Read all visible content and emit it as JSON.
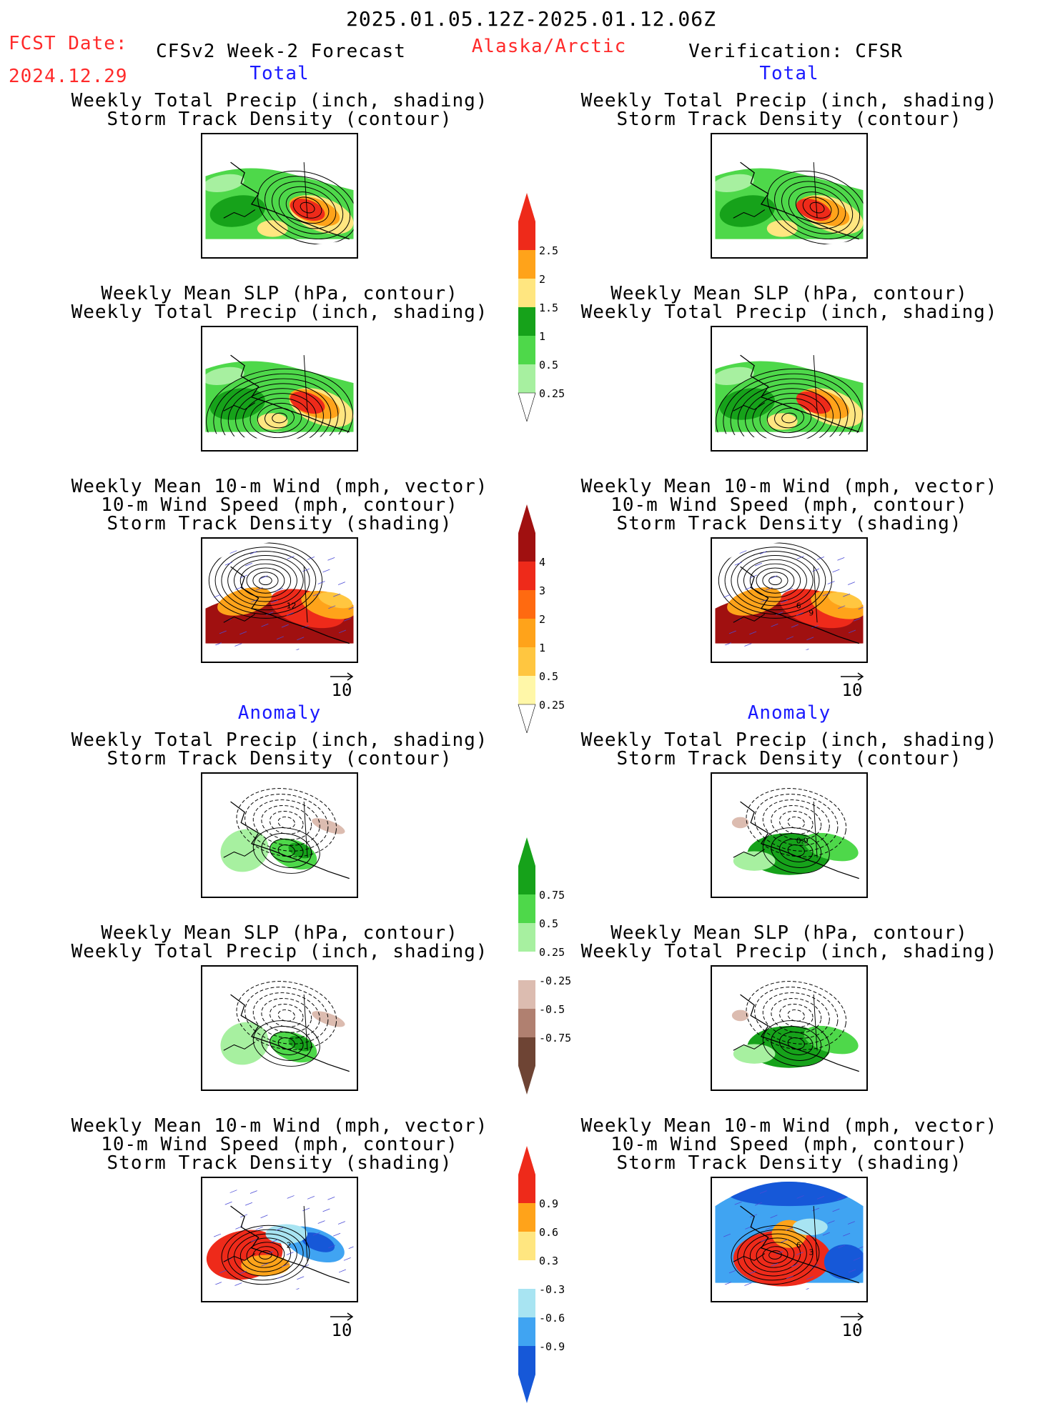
{
  "header": {
    "date_range": "2025.01.05.12Z-2025.01.12.06Z",
    "fcst_label": "FCST Date:",
    "fcst_date": "2024.12.29",
    "model_title": "CFSv2 Week-2 Forecast",
    "region": "Alaska/Arctic",
    "verification": "Verification: CFSR"
  },
  "sections": {
    "total": "Total",
    "anomaly": "Anomaly"
  },
  "titles": {
    "precip_storm": [
      "Weekly Total Precip (inch, shading)",
      "Storm Track Density (contour)"
    ],
    "slp_precip": [
      "Weekly Mean SLP (hPa, contour)",
      "Weekly Total Precip (inch, shading)"
    ],
    "wind_storm": [
      "Weekly Mean 10-m Wind (mph, vector)",
      "10-m Wind Speed (mph, contour)",
      "Storm Track Density (shading)"
    ]
  },
  "vector_ref": "10",
  "colors": {
    "green1": "#a7f0a0",
    "green2": "#4ed84a",
    "green3": "#16a21a",
    "yellow": "#ffe680",
    "orange": "#ffa31a",
    "red": "#ee2a1a",
    "darkred": "#a01010",
    "brown1": "#dcbcb0",
    "brown2": "#b08070",
    "brown3": "#6e4434",
    "blue1": "#a8e4f2",
    "blue2": "#40a4f2",
    "blue3": "#1658d8",
    "pale_yellow": "#fff7a8",
    "light_orange": "#ffc640"
  },
  "chart_data": {
    "type": "heatmap",
    "panels": [
      {
        "column": "forecast",
        "section": "total",
        "row": 1,
        "field": "precip_storm",
        "annotations": []
      },
      {
        "column": "forecast",
        "section": "total",
        "row": 2,
        "field": "slp_precip",
        "annotations": []
      },
      {
        "column": "forecast",
        "section": "total",
        "row": 3,
        "field": "wind_storm",
        "annotations": [
          "12"
        ]
      },
      {
        "column": "verification",
        "section": "total",
        "row": 1,
        "field": "precip_storm",
        "annotations": []
      },
      {
        "column": "verification",
        "section": "total",
        "row": 2,
        "field": "slp_precip",
        "annotations": []
      },
      {
        "column": "verification",
        "section": "total",
        "row": 3,
        "field": "wind_storm",
        "annotations": [
          "6",
          "9"
        ]
      },
      {
        "column": "forecast",
        "section": "anomaly",
        "row": 1,
        "field": "precip_storm",
        "annotations": []
      },
      {
        "column": "forecast",
        "section": "anomaly",
        "row": 2,
        "field": "slp_precip",
        "annotations": []
      },
      {
        "column": "forecast",
        "section": "anomaly",
        "row": 3,
        "field": "wind_storm",
        "annotations": [
          "2"
        ]
      },
      {
        "column": "verification",
        "section": "anomaly",
        "row": 1,
        "field": "precip_storm",
        "annotations": [
          "0.9"
        ]
      },
      {
        "column": "verification",
        "section": "anomaly",
        "row": 2,
        "field": "slp_precip",
        "annotations": []
      },
      {
        "column": "verification",
        "section": "anomaly",
        "row": 3,
        "field": "wind_storm",
        "annotations": [
          "6",
          "3"
        ]
      }
    ],
    "colorbars": [
      {
        "id": "precip_total",
        "labels": [
          "2.5",
          "2",
          "1.5",
          "1",
          "0.5",
          "0.25"
        ],
        "colors": [
          "#ee2a1a",
          "#ffa31a",
          "#ffe680",
          "#16a21a",
          "#4ed84a",
          "#a7f0a0"
        ]
      },
      {
        "id": "storm_total",
        "labels": [
          "4",
          "3",
          "2",
          "1",
          "0.5",
          "0.25"
        ],
        "colors": [
          "#a01010",
          "#ee2a1a",
          "#ff6a10",
          "#ffa31a",
          "#ffc640",
          "#fff7a8"
        ]
      },
      {
        "id": "precip_anom",
        "labels": [
          "0.75",
          "0.5",
          "0.25",
          "-0.25",
          "-0.5",
          "-0.75"
        ],
        "colors": [
          "#16a21a",
          "#4ed84a",
          "#a7f0a0",
          "#ffffff",
          "#dcbcb0",
          "#b08070",
          "#6e4434"
        ]
      },
      {
        "id": "storm_anom",
        "labels": [
          "0.9",
          "0.6",
          "0.3",
          "-0.3",
          "-0.6",
          "-0.9"
        ],
        "colors": [
          "#ee2a1a",
          "#ffa31a",
          "#ffe680",
          "#ffffff",
          "#a8e4f2",
          "#40a4f2",
          "#1658d8"
        ]
      }
    ]
  }
}
